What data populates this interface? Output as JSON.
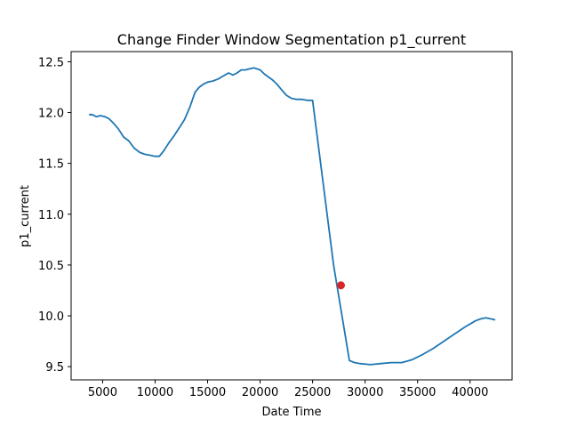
{
  "chart_data": {
    "type": "line",
    "title": "Change Finder Window Segmentation p1_current",
    "xlabel": "Date Time",
    "ylabel": "p1_current",
    "xlim": [
      2000,
      44000
    ],
    "ylim": [
      9.37,
      12.6
    ],
    "xticks": [
      5000,
      10000,
      15000,
      20000,
      25000,
      30000,
      35000,
      40000
    ],
    "yticks": [
      9.5,
      10.0,
      10.5,
      11.0,
      11.5,
      12.0,
      12.5
    ],
    "ytick_labels": [
      "9.5",
      "10.0",
      "10.5",
      "11.0",
      "11.5",
      "12.0",
      "12.5"
    ],
    "grid": false,
    "colors": {
      "line": "#1f77b4",
      "marker": "#d62728"
    },
    "series": [
      {
        "x": [
          3700,
          4000,
          4400,
          4800,
          5200,
          5600,
          6000,
          6500,
          7000,
          7500,
          8000,
          8500,
          9000,
          9500,
          10000,
          10400,
          10800,
          11300,
          11800,
          12300,
          12800,
          13300,
          13800,
          14200,
          14600,
          15000,
          15500,
          16000,
          16500,
          17000,
          17400,
          17800,
          18200,
          18600,
          19000,
          19400,
          19700,
          20000,
          20400,
          20800,
          21200,
          21600,
          22000,
          22500,
          23000,
          23500,
          24000,
          24500,
          25000,
          27000,
          28500,
          29000,
          29500,
          30500,
          31500,
          32500,
          33500,
          34500,
          35500,
          36500,
          37500,
          38500,
          39500,
          40000,
          40500,
          41000,
          41500,
          42000,
          42400
        ],
        "y": [
          11.98,
          11.98,
          11.96,
          11.97,
          11.96,
          11.94,
          11.9,
          11.84,
          11.76,
          11.72,
          11.65,
          11.61,
          11.59,
          11.58,
          11.57,
          11.57,
          11.62,
          11.7,
          11.77,
          11.85,
          11.93,
          12.05,
          12.2,
          12.25,
          12.28,
          12.3,
          12.31,
          12.33,
          12.36,
          12.39,
          12.37,
          12.39,
          12.42,
          12.42,
          12.43,
          12.44,
          12.43,
          12.42,
          12.38,
          12.35,
          12.32,
          12.28,
          12.23,
          12.17,
          12.14,
          12.13,
          12.13,
          12.12,
          12.12,
          10.5,
          9.56,
          9.54,
          9.53,
          9.52,
          9.53,
          9.54,
          9.54,
          9.57,
          9.62,
          9.68,
          9.75,
          9.82,
          9.89,
          9.92,
          9.95,
          9.97,
          9.98,
          9.97,
          9.96
        ]
      }
    ],
    "marker": {
      "x": 27700,
      "y": 10.3
    }
  }
}
